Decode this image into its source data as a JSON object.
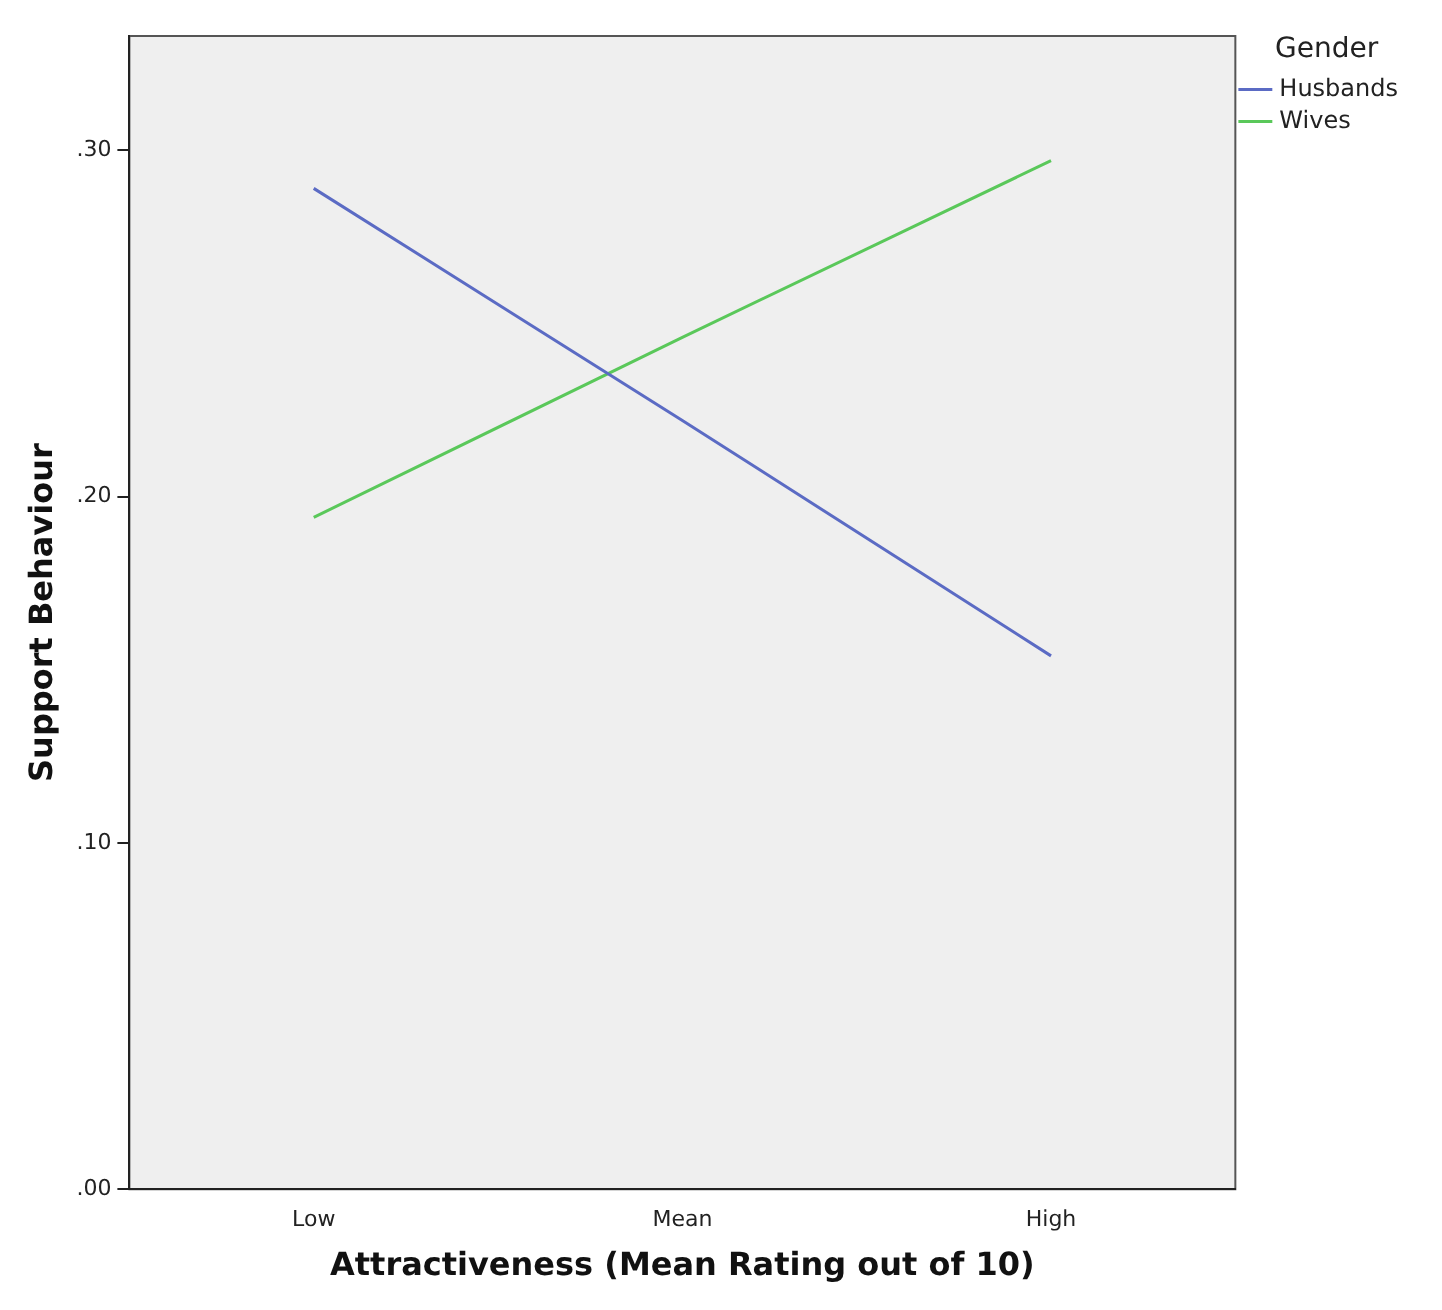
{
  "chart_data": {
    "type": "line",
    "xlabel": "Attractiveness (Mean Rating out of 10)",
    "ylabel": "Support Behaviour",
    "legend_title": "Gender",
    "categories": [
      "Low",
      "Mean",
      "High"
    ],
    "series": [
      {
        "name": "Husbands",
        "color": "#5b6bc4",
        "values": [
          0.289,
          0.222,
          0.154
        ]
      },
      {
        "name": "Wives",
        "color": "#5ac85a",
        "values": [
          0.194,
          0.246,
          0.297
        ]
      }
    ],
    "ylim": [
      0,
      0.333
    ],
    "yticks": [
      {
        "value": 0,
        "label": ".00"
      },
      {
        "value": 0.1,
        "label": ".10"
      },
      {
        "value": 0.2,
        "label": ".20"
      },
      {
        "value": 0.3,
        "label": ".30"
      }
    ],
    "grid": false,
    "legend": "top right",
    "marker": "none",
    "line_style": "solid"
  }
}
